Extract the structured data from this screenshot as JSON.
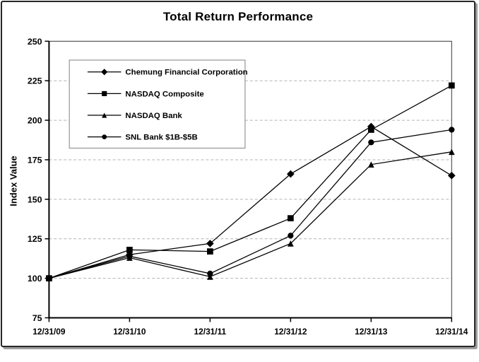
{
  "chart_data": {
    "type": "line",
    "title": "Total Return Performance",
    "ylabel": "Index Value",
    "xlabel": "",
    "categories": [
      "12/31/09",
      "12/31/10",
      "12/31/11",
      "12/31/12",
      "12/31/13",
      "12/31/14"
    ],
    "ylim": [
      75,
      250
    ],
    "ytick_interval": 25,
    "yticks": [
      75,
      100,
      125,
      150,
      175,
      200,
      225,
      250
    ],
    "grid": "horizontal-dashed",
    "legend_position": "top-left-inside-plot",
    "series": [
      {
        "name": "Chemung Financial Corporation",
        "marker": "diamond",
        "values": [
          100,
          115,
          122,
          166,
          196,
          165
        ]
      },
      {
        "name": "NASDAQ Composite",
        "marker": "square",
        "values": [
          100,
          118,
          117,
          138,
          194,
          222
        ]
      },
      {
        "name": "NASDAQ Bank",
        "marker": "triangle",
        "values": [
          100,
          113,
          101,
          122,
          172,
          180
        ]
      },
      {
        "name": "SNL Bank $1B-$5B",
        "marker": "circle",
        "values": [
          100,
          114,
          103,
          127,
          186,
          194
        ]
      }
    ],
    "colors": {
      "line": "#000000",
      "marker": "#000000",
      "grid": "#b3b3b3",
      "plot_border": "#333333",
      "axis": "#000000",
      "legend_border": "#808080",
      "background": "#ffffff",
      "text": "#000000",
      "frame_shadow": "#9e9e9e"
    }
  }
}
